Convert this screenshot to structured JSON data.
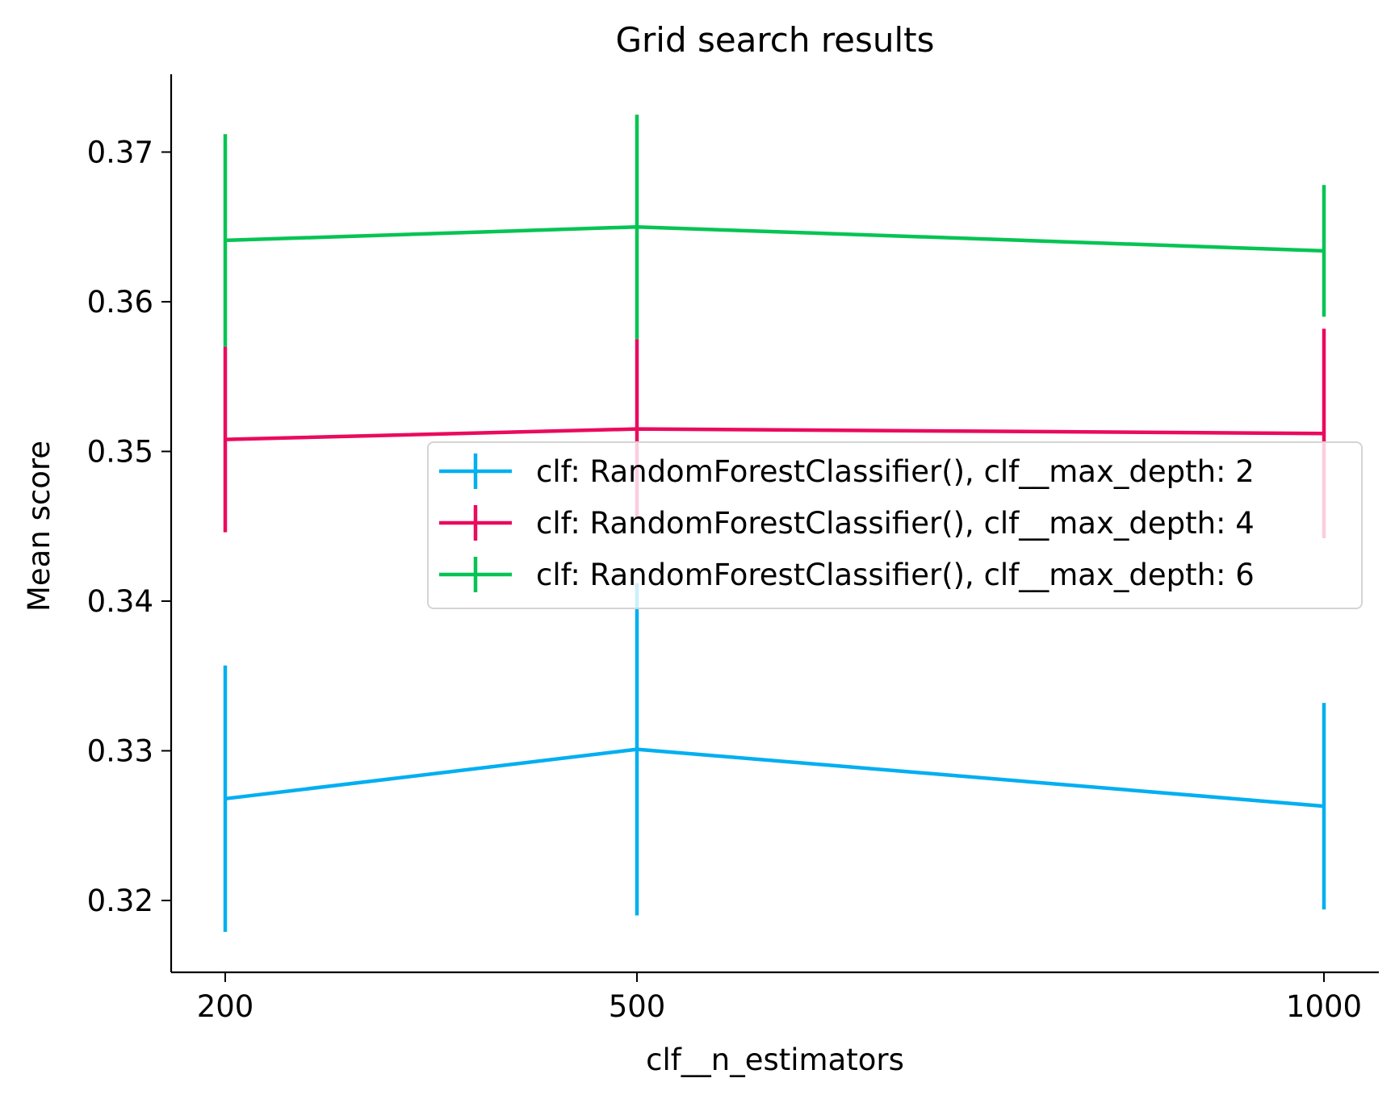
{
  "chart_data": {
    "type": "line",
    "title": "Grid search results",
    "xlabel": "clf__n_estimators",
    "ylabel": "Mean score",
    "x": [
      200,
      500,
      1000
    ],
    "x_ticks": [
      "200",
      "500",
      "1000"
    ],
    "y_ticks": [
      0.32,
      0.33,
      0.34,
      0.35,
      0.36,
      0.37
    ],
    "y_tick_labels": [
      "0.32",
      "0.33",
      "0.34",
      "0.35",
      "0.36",
      "0.37"
    ],
    "ylim": [
      0.3152,
      0.3752
    ],
    "grid": false,
    "error_bars": true,
    "legend_position": "center-right",
    "series": [
      {
        "name": "clf: RandomForestClassifier(), clf__max_depth: 2",
        "color": "#03aff0",
        "values": [
          0.3268,
          0.3301,
          0.3263
        ],
        "errors": [
          0.0089,
          0.0111,
          0.0069
        ]
      },
      {
        "name": "clf: RandomForestClassifier(), clf__max_depth: 4",
        "color": "#ea0a5e",
        "values": [
          0.3508,
          0.3515,
          0.3512
        ],
        "errors": [
          0.0062,
          0.006,
          0.007
        ]
      },
      {
        "name": "clf: RandomForestClassifier(), clf__max_depth: 6",
        "color": "#06c454",
        "values": [
          0.3641,
          0.365,
          0.3634
        ],
        "errors": [
          0.0071,
          0.0075,
          0.0044
        ]
      }
    ]
  }
}
